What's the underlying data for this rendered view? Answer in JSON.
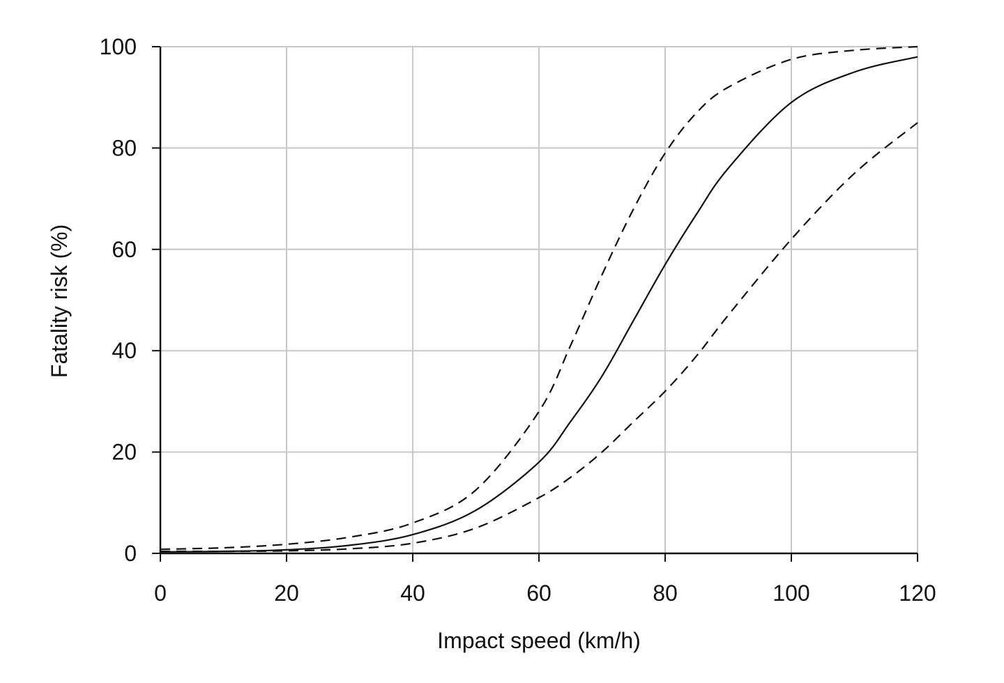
{
  "chart_data": {
    "type": "line",
    "title": "",
    "xlabel": "Impact speed (km/h)",
    "ylabel": "Fatality risk (%)",
    "xlim": [
      0,
      120
    ],
    "ylim": [
      0,
      100
    ],
    "xticks": [
      0,
      20,
      40,
      60,
      80,
      100,
      120
    ],
    "yticks": [
      0,
      20,
      40,
      60,
      80,
      100
    ],
    "grid": true,
    "x": [
      0,
      10,
      20,
      30,
      40,
      50,
      60,
      65,
      70,
      75,
      80,
      85,
      90,
      100,
      110,
      120
    ],
    "series": [
      {
        "style": "solid",
        "color": "#111111",
        "values": [
          0.3,
          0.4,
          0.7,
          1.6,
          3.7,
          8.5,
          18,
          26,
          35,
          46,
          57,
          67,
          76,
          89,
          95,
          98
        ]
      },
      {
        "style": "dashed",
        "color": "#111111",
        "values": [
          0.8,
          1.1,
          1.8,
          3.2,
          6,
          12.5,
          28,
          41,
          55,
          68,
          79,
          87,
          92,
          97.5,
          99.3,
          100
        ]
      },
      {
        "style": "dashed",
        "color": "#111111",
        "values": [
          0.4,
          0.4,
          0.5,
          0.9,
          2,
          5,
          11,
          15,
          20,
          26,
          32,
          39,
          47,
          62,
          75,
          85
        ]
      }
    ]
  }
}
